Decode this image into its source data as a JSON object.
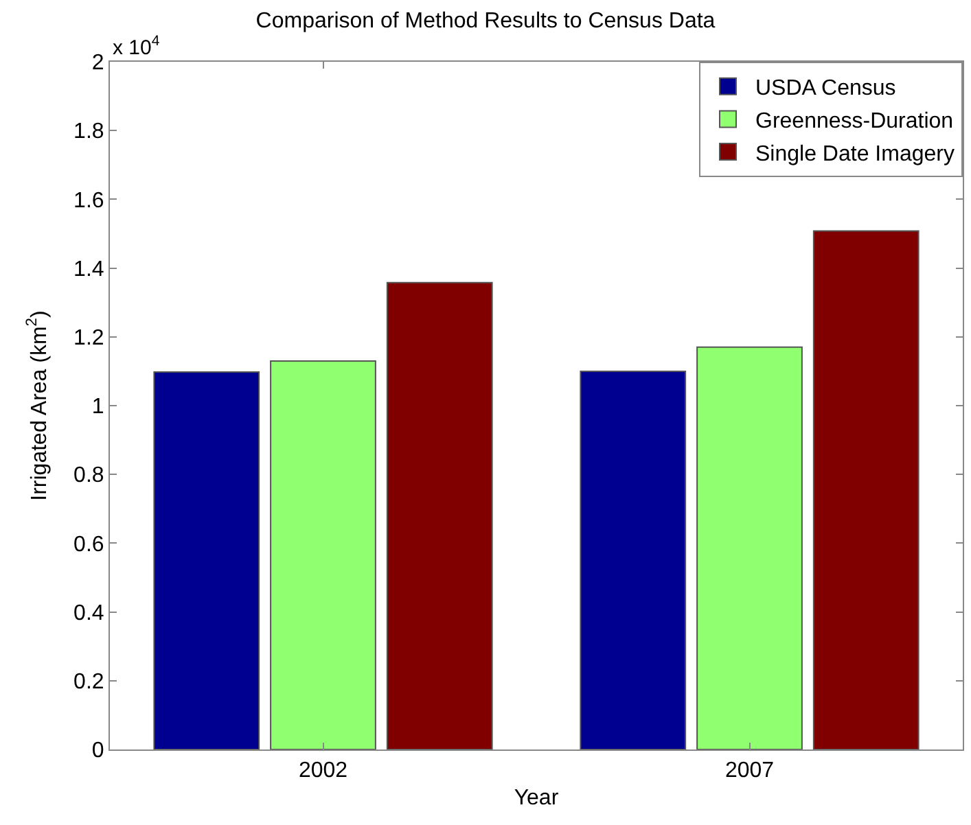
{
  "chart_data": {
    "type": "bar",
    "title": "Comparison of Method Results to Census Data",
    "xlabel": "Year",
    "ylabel": "Irrigated Area (km$^{2}$)",
    "categories": [
      "2002",
      "2007"
    ],
    "series": [
      {
        "name": "USDA Census",
        "color": "#000090",
        "values": [
          1.098,
          1.1
        ]
      },
      {
        "name": "Greenness-Duration",
        "color": "#90ff70",
        "values": [
          1.13,
          1.17
        ]
      },
      {
        "name": "Single Date Imagery",
        "color": "#800000",
        "values": [
          1.358,
          1.508
        ]
      }
    ],
    "ylim": [
      0,
      2
    ],
    "yticks": [
      0,
      0.2,
      0.4,
      0.6,
      0.8,
      1,
      1.2,
      1.4,
      1.6,
      1.8,
      2
    ],
    "annotations": [
      "x 10$^{4}$"
    ],
    "legend": "top right"
  }
}
